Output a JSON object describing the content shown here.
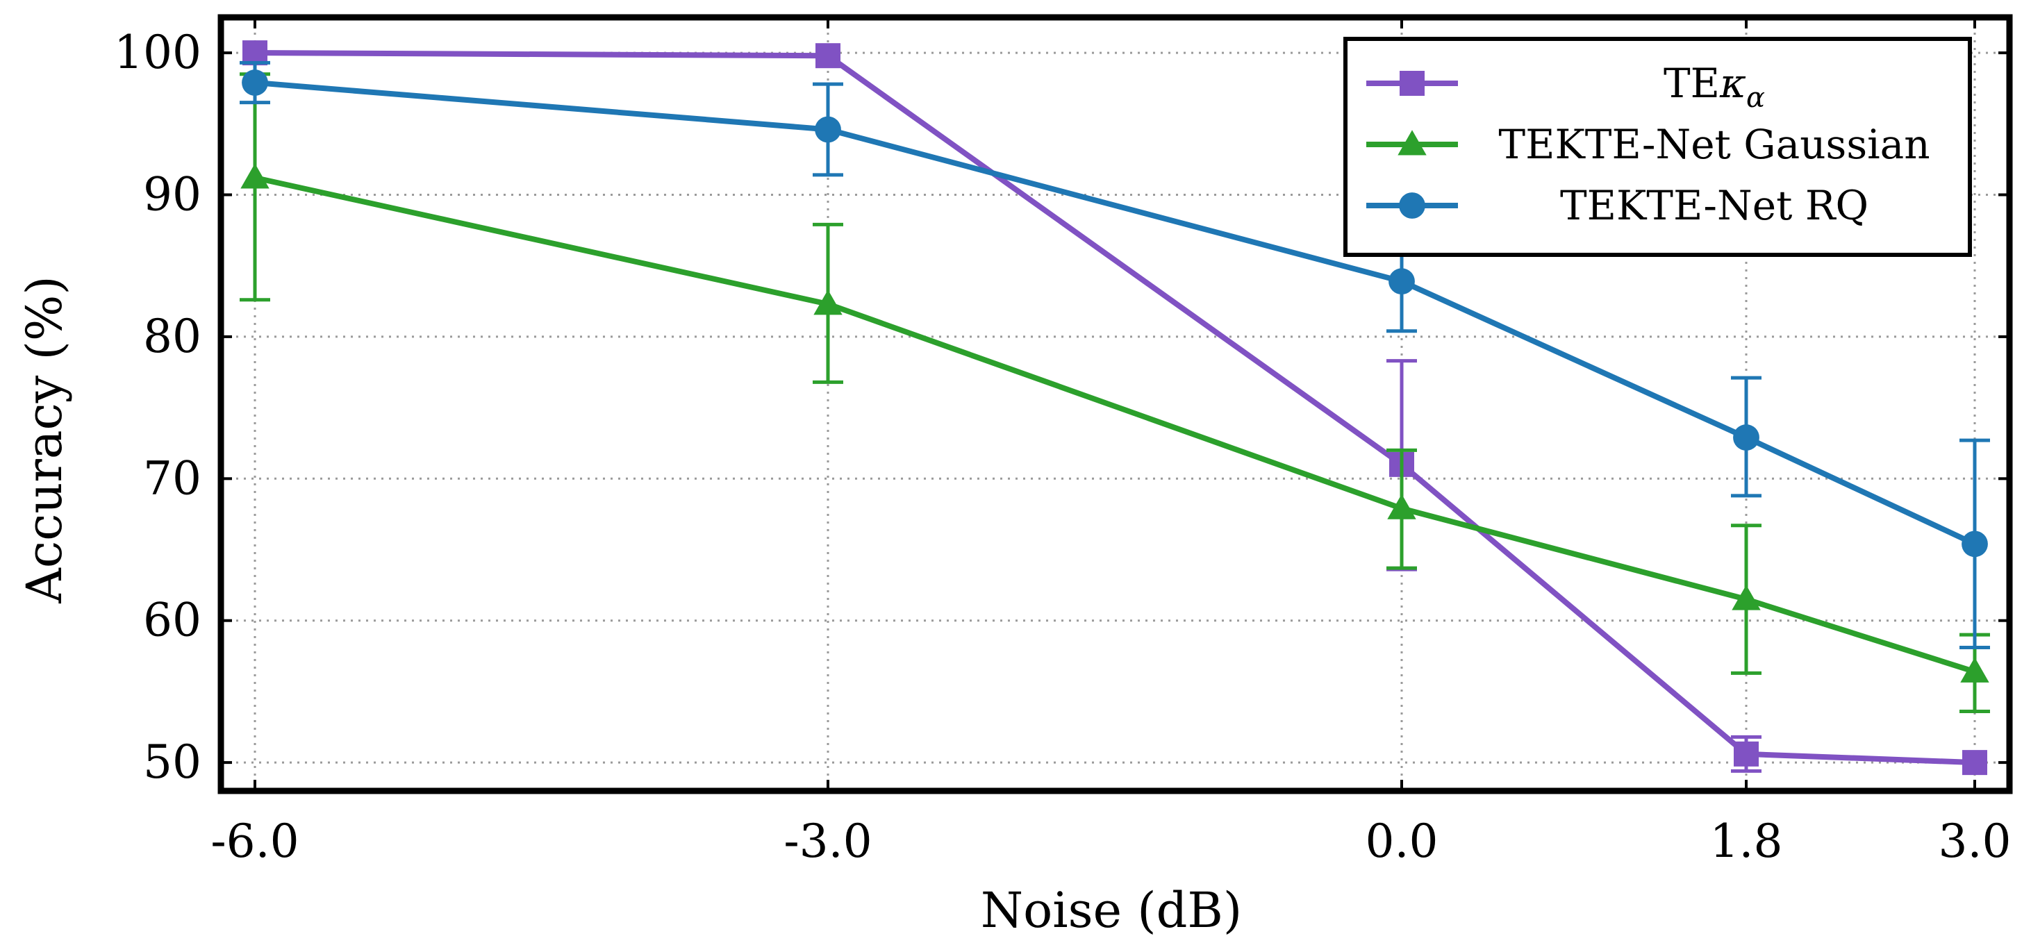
{
  "chart_data": {
    "type": "line",
    "title": "",
    "xlabel": "Noise (dB)",
    "ylabel": "Accuracy (%)",
    "x": [
      -6.0,
      -3.0,
      0.0,
      1.8,
      3.0
    ],
    "x_tick_labels": [
      "-6.0",
      "-3.0",
      "0.0",
      "1.8",
      "3.0"
    ],
    "x_scale": "categorical-equal-spacing",
    "ylim": [
      48,
      102.5
    ],
    "y_ticks": [
      50,
      60,
      70,
      80,
      90,
      100
    ],
    "y_tick_labels": [
      "50",
      "60",
      "70",
      "80",
      "90",
      "100"
    ],
    "grid": true,
    "legend_position": "top-right",
    "series": [
      {
        "name": "TEκα",
        "name_base": "TE",
        "name_greek": "κ",
        "name_sub": "α",
        "color": "#8052c3",
        "marker": "square",
        "values": [
          100.0,
          99.8,
          71.0,
          50.6,
          50.0
        ],
        "err_low": [
          null,
          null,
          63.6,
          49.4,
          null
        ],
        "err_high": [
          null,
          null,
          78.3,
          51.8,
          null
        ]
      },
      {
        "name": "TEKTE-Net Gaussian",
        "color": "#2ca02c",
        "marker": "triangle",
        "values": [
          91.2,
          82.3,
          67.9,
          61.5,
          56.4
        ],
        "err_low": [
          82.6,
          76.8,
          63.7,
          56.3,
          53.6
        ],
        "err_high": [
          98.5,
          87.9,
          72.0,
          66.7,
          59.0
        ]
      },
      {
        "name": "TEKTE-Net RQ",
        "color": "#1f77b4",
        "marker": "circle",
        "values": [
          97.9,
          94.6,
          83.9,
          72.9,
          65.4
        ],
        "err_low": [
          96.5,
          91.4,
          80.4,
          68.8,
          58.1
        ],
        "err_high": [
          99.3,
          97.8,
          87.4,
          77.1,
          72.7
        ]
      }
    ]
  }
}
